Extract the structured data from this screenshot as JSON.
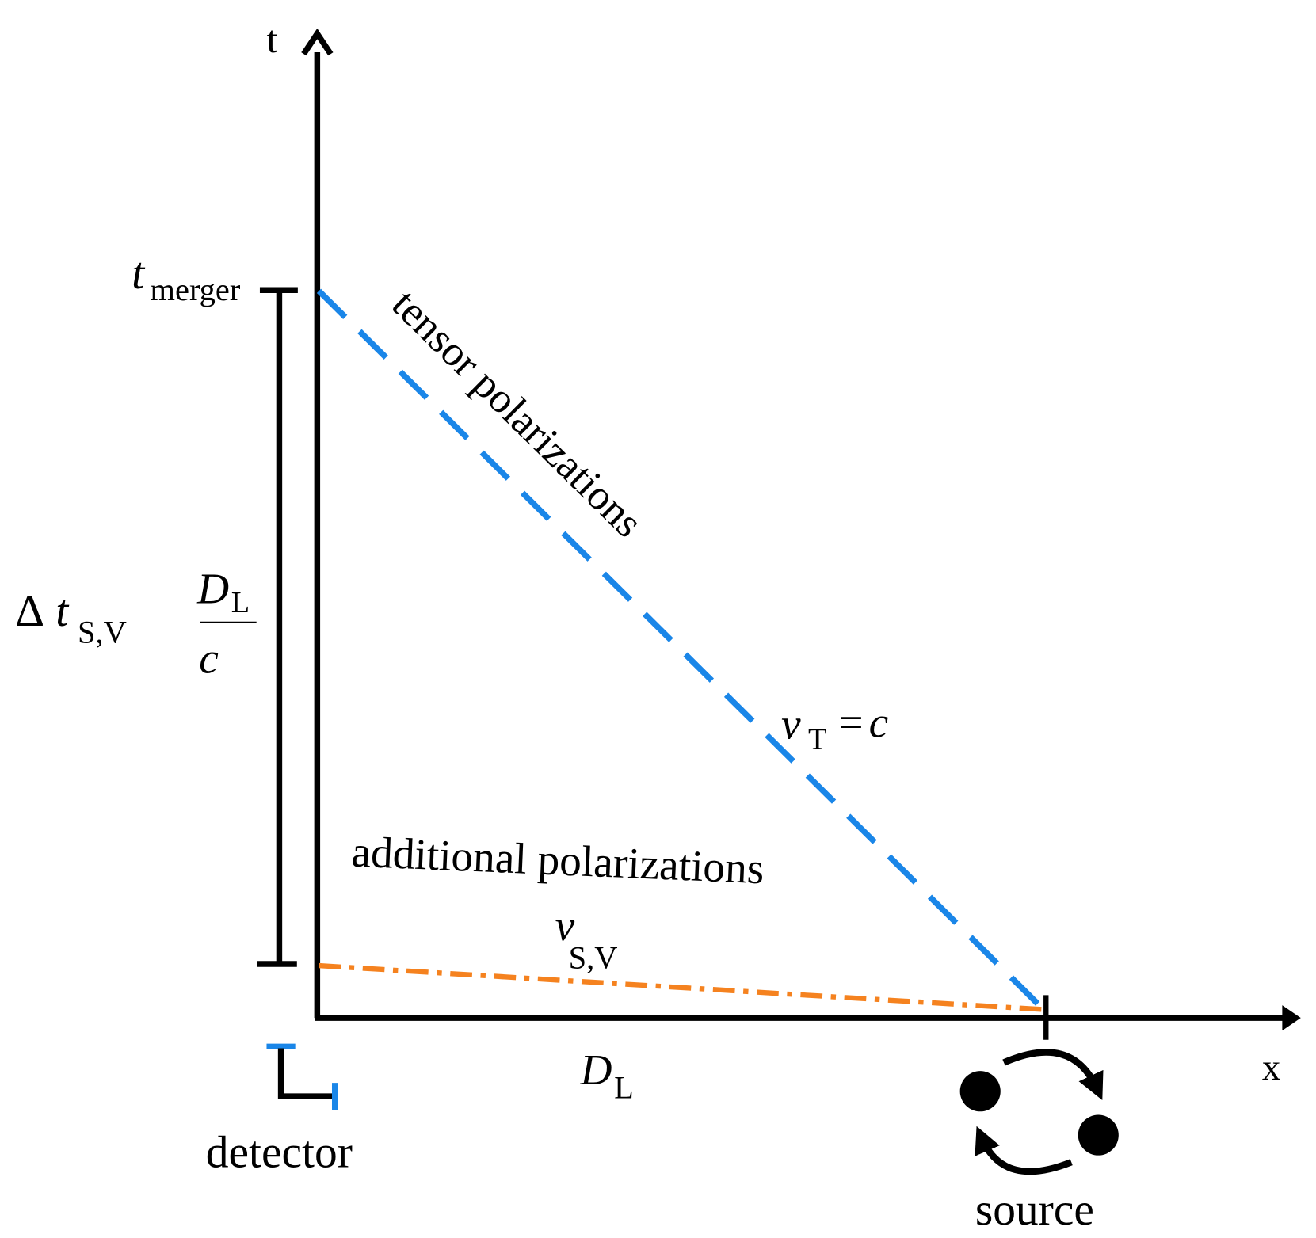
{
  "axes": {
    "t": "t",
    "x": "x"
  },
  "annotations": {
    "t_merger": {
      "main": "t",
      "sub": "merger"
    },
    "delta_t": {
      "symbol": "Δ",
      "main": "t",
      "sub": "S,V"
    },
    "fraction": {
      "numerator": {
        "main": "D",
        "sub": "L"
      },
      "denominator": "c"
    },
    "tensor": "tensor polarizations",
    "v_T": {
      "main": "v",
      "sub": "T",
      "equals": "=",
      "rhs": "c"
    },
    "additional": "additional polarizations",
    "v_SV": {
      "main": "v",
      "sub": "S,V"
    },
    "distance": {
      "main": "D",
      "sub": "L"
    },
    "detector": "detector",
    "source": "source"
  }
}
